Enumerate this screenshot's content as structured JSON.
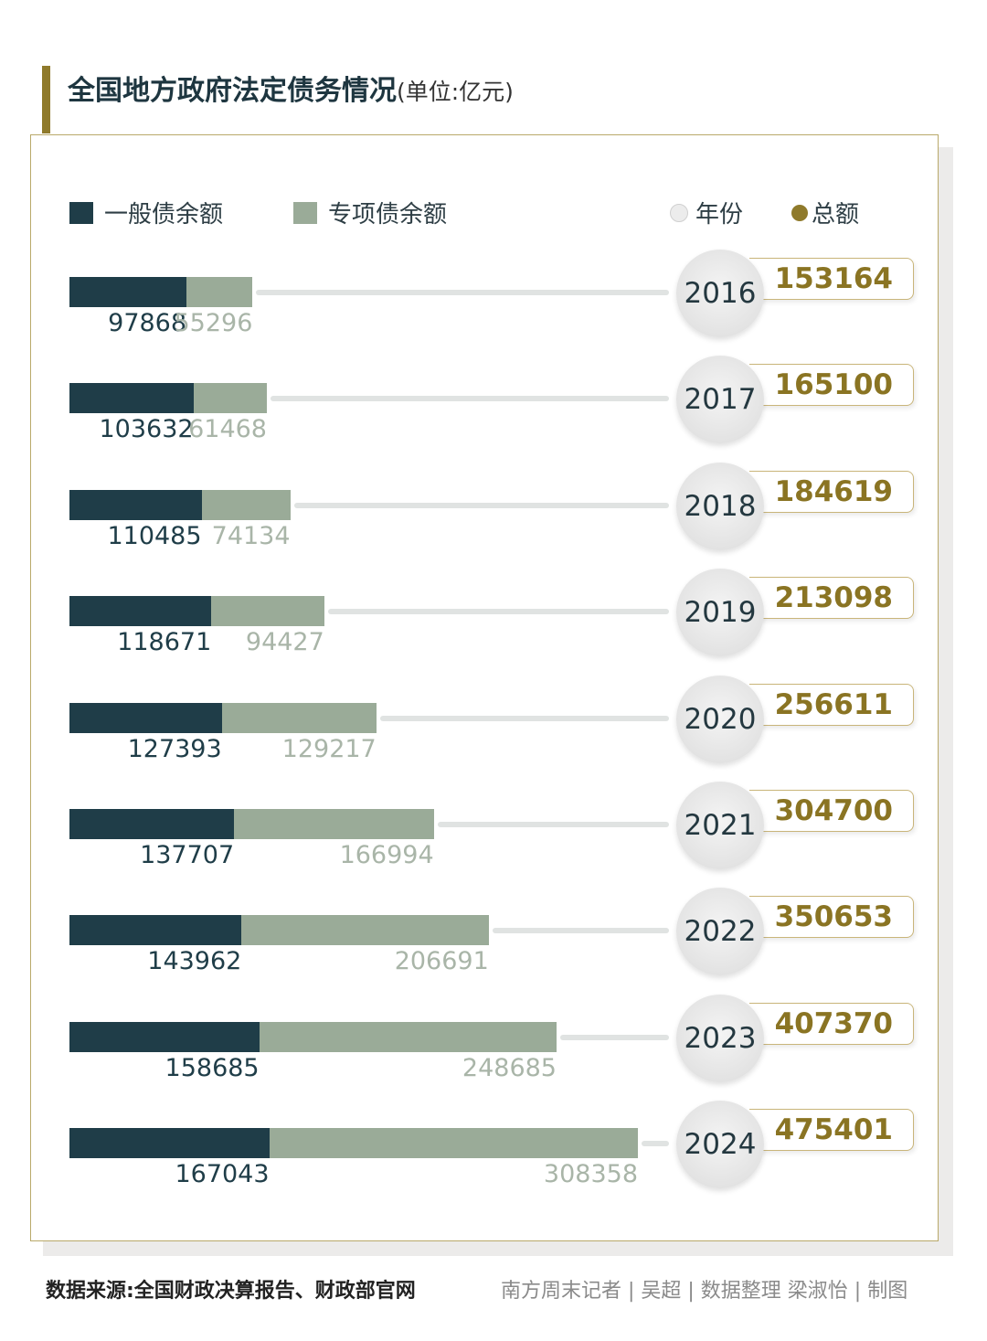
{
  "title": "全国地方政府法定债务情况",
  "unit": "(单位:亿元)",
  "legend": {
    "general": "一般债余额",
    "special": "专项债余额",
    "year": "年份",
    "total": "总额"
  },
  "colors": {
    "general": "#1f3d48",
    "special": "#9aab98",
    "total_text": "#8a7423",
    "title_accent": "#8f7a2b"
  },
  "chart_data": {
    "type": "bar",
    "stacked": true,
    "orientation": "horizontal",
    "title": "全国地方政府法定债务情况",
    "unit": "亿元",
    "categories": [
      "2016",
      "2017",
      "2018",
      "2019",
      "2020",
      "2021",
      "2022",
      "2023",
      "2024"
    ],
    "series": [
      {
        "name": "一般债余额",
        "values": [
          97868,
          103632,
          110485,
          118671,
          127393,
          137707,
          143962,
          158685,
          167043
        ]
      },
      {
        "name": "专项债余额",
        "values": [
          55296,
          61468,
          74134,
          94427,
          129217,
          166994,
          206691,
          248685,
          308358
        ]
      }
    ],
    "totals": [
      153164,
      165100,
      184619,
      213098,
      256611,
      304700,
      350653,
      407370,
      475401
    ],
    "legend_position": "top"
  },
  "footer": {
    "source": "数据来源:全国财政决算报告、财政部官网",
    "credit": "南方周末记者 | 吴超 | 数据整理  梁淑怡 | 制图"
  }
}
